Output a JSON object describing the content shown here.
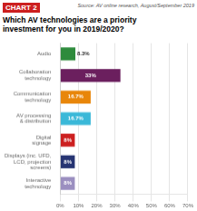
{
  "chart_data": {
    "type": "bar",
    "orientation": "horizontal",
    "title": "CHART 2",
    "subtitle": "Which AV technologies are a priority\ninvestment for you in 2019/2020?",
    "annotations": [
      "Source: AV online research, August/September 2019"
    ],
    "categories": [
      "Audio",
      "Collaboration\ntechnology",
      "Communication\ntechnology",
      "AV processing\n& distribution",
      "Digital\nsignage",
      "Displays (inc. UFD,\nLCD, projection\nscreens)",
      "Interactive\ntechnology"
    ],
    "values": [
      8.3,
      33,
      16.7,
      16.7,
      8,
      8,
      8
    ],
    "value_labels": [
      "8.3%",
      "33%",
      "16.7%",
      "16.7%",
      "8%",
      "8%",
      "8%"
    ],
    "data_labels": true,
    "colors": [
      "#2e8b3c",
      "#6b1f5e",
      "#e8860a",
      "#3ab8d8",
      "#cc1f1f",
      "#263472",
      "#9b8fc0"
    ],
    "xlim": [
      0,
      70
    ],
    "xticks": [
      {
        "value": 0,
        "label": "0%"
      },
      {
        "value": 10,
        "label": "10%"
      },
      {
        "value": 20,
        "label": "20%"
      },
      {
        "value": 30,
        "label": "30%"
      },
      {
        "value": 40,
        "label": "40%"
      },
      {
        "value": 50,
        "label": "50%"
      },
      {
        "value": 60,
        "label": "60%"
      },
      {
        "value": 70,
        "label": "70%"
      }
    ],
    "grid": true
  }
}
